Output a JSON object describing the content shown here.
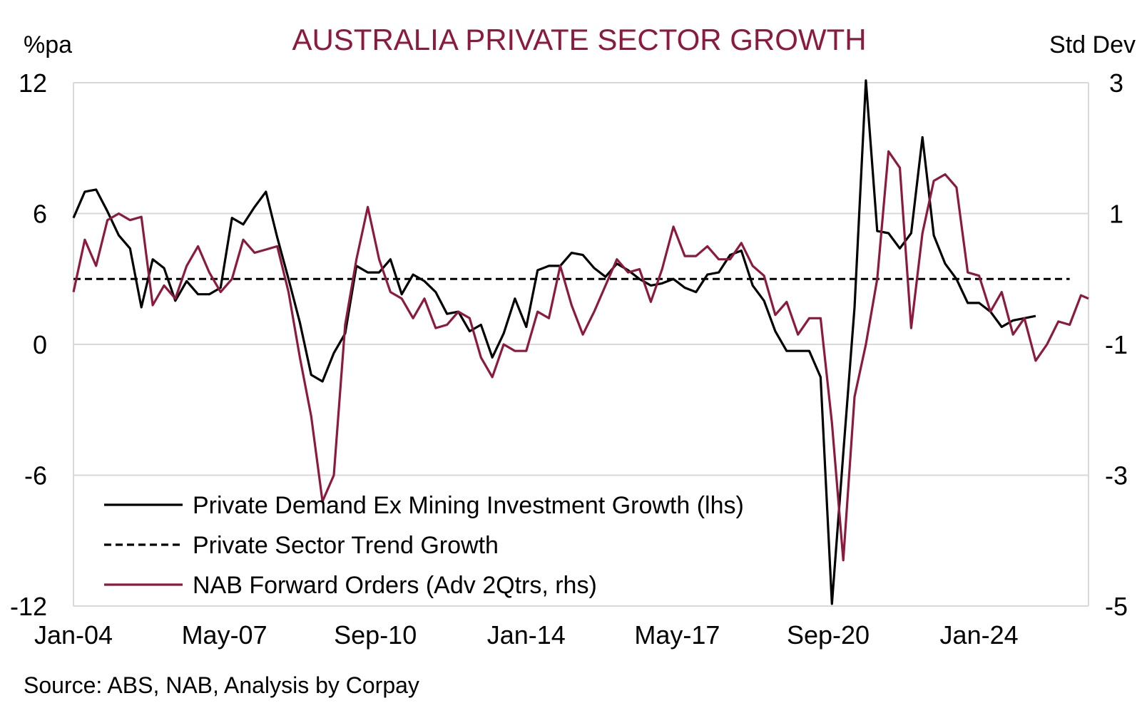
{
  "chart_data": {
    "type": "line",
    "title": "AUSTRALIA PRIVATE SECTOR GROWTH",
    "ylabel_left": "%pa",
    "ylabel_right": "Std Dev",
    "source": "Source: ABS, NAB, Analysis by Corpay",
    "x_axis": {
      "start": "2004-01",
      "end": "2026-06",
      "ticks": [
        "2004-01",
        "2007-05",
        "2010-09",
        "2014-01",
        "2017-05",
        "2020-09",
        "2024-01"
      ],
      "tick_labels": [
        "Jan-04",
        "May-07",
        "Sep-10",
        "Jan-14",
        "May-17",
        "Sep-20",
        "Jan-24"
      ]
    },
    "y_left": {
      "range": [
        -12,
        12
      ],
      "ticks": [
        -12,
        -6,
        0,
        6,
        12
      ],
      "tick_labels": [
        "-12",
        "-6",
        "0",
        "6",
        "12"
      ]
    },
    "y_right": {
      "range": [
        -5,
        3
      ],
      "ticks": [
        -5,
        -3,
        -1,
        1,
        3
      ],
      "tick_labels": [
        "-5",
        "-3",
        "-1",
        "1",
        "3"
      ]
    },
    "grid": "horizontal",
    "legend_position": "bottom-left",
    "series": [
      {
        "name": "Private Demand Ex Mining Investment Growth (lhs)",
        "axis": "left",
        "color": "#000000",
        "style": "solid",
        "points": [
          [
            "2004-01",
            5.8
          ],
          [
            "2004-04",
            7.0
          ],
          [
            "2004-07",
            7.1
          ],
          [
            "2004-10",
            6.1
          ],
          [
            "2005-01",
            5.0
          ],
          [
            "2005-04",
            4.4
          ],
          [
            "2005-07",
            1.7
          ],
          [
            "2005-10",
            3.9
          ],
          [
            "2006-01",
            3.5
          ],
          [
            "2006-04",
            2.0
          ],
          [
            "2006-07",
            2.9
          ],
          [
            "2006-10",
            2.3
          ],
          [
            "2007-01",
            2.3
          ],
          [
            "2007-04",
            2.6
          ],
          [
            "2007-07",
            5.8
          ],
          [
            "2007-10",
            5.5
          ],
          [
            "2008-01",
            6.3
          ],
          [
            "2008-04",
            7.0
          ],
          [
            "2008-07",
            4.9
          ],
          [
            "2008-10",
            3.0
          ],
          [
            "2009-01",
            1.0
          ],
          [
            "2009-04",
            -1.4
          ],
          [
            "2009-07",
            -1.7
          ],
          [
            "2009-10",
            -0.4
          ],
          [
            "2010-01",
            0.5
          ],
          [
            "2010-04",
            3.6
          ],
          [
            "2010-07",
            3.3
          ],
          [
            "2010-10",
            3.3
          ],
          [
            "2011-01",
            3.9
          ],
          [
            "2011-04",
            2.3
          ],
          [
            "2011-07",
            3.2
          ],
          [
            "2011-10",
            2.9
          ],
          [
            "2012-01",
            2.4
          ],
          [
            "2012-04",
            1.4
          ],
          [
            "2012-07",
            1.5
          ],
          [
            "2012-10",
            0.6
          ],
          [
            "2013-01",
            0.9
          ],
          [
            "2013-04",
            -0.6
          ],
          [
            "2013-07",
            0.5
          ],
          [
            "2013-10",
            2.1
          ],
          [
            "2014-01",
            0.8
          ],
          [
            "2014-04",
            3.4
          ],
          [
            "2014-07",
            3.6
          ],
          [
            "2014-10",
            3.6
          ],
          [
            "2015-01",
            4.2
          ],
          [
            "2015-04",
            4.1
          ],
          [
            "2015-07",
            3.5
          ],
          [
            "2015-10",
            3.1
          ],
          [
            "2016-01",
            3.7
          ],
          [
            "2016-04",
            3.4
          ],
          [
            "2016-07",
            3.0
          ],
          [
            "2016-10",
            2.7
          ],
          [
            "2017-01",
            2.8
          ],
          [
            "2017-04",
            3.0
          ],
          [
            "2017-07",
            2.6
          ],
          [
            "2017-10",
            2.4
          ],
          [
            "2018-01",
            3.2
          ],
          [
            "2018-04",
            3.3
          ],
          [
            "2018-07",
            4.1
          ],
          [
            "2018-10",
            4.3
          ],
          [
            "2019-01",
            2.7
          ],
          [
            "2019-04",
            2.0
          ],
          [
            "2019-07",
            0.6
          ],
          [
            "2019-10",
            -0.3
          ],
          [
            "2020-01",
            -0.3
          ],
          [
            "2020-04",
            -0.3
          ],
          [
            "2020-07",
            -1.5
          ],
          [
            "2020-10",
            -11.9
          ],
          [
            "2021-01",
            -5.0
          ],
          [
            "2021-04",
            1.7
          ],
          [
            "2021-07",
            12.1
          ],
          [
            "2021-10",
            5.2
          ],
          [
            "2022-01",
            5.1
          ],
          [
            "2022-04",
            4.4
          ],
          [
            "2022-07",
            5.1
          ],
          [
            "2022-10",
            9.5
          ],
          [
            "2023-01",
            5.0
          ],
          [
            "2023-04",
            3.7
          ],
          [
            "2023-07",
            3.0
          ],
          [
            "2023-10",
            1.9
          ],
          [
            "2024-01",
            1.9
          ],
          [
            "2024-04",
            1.5
          ],
          [
            "2024-07",
            0.8
          ],
          [
            "2024-10",
            1.1
          ],
          [
            "2025-01",
            1.2
          ],
          [
            "2025-04",
            1.3
          ]
        ]
      },
      {
        "name": "Private Sector Trend Growth",
        "axis": "left",
        "color": "#000000",
        "style": "dashed",
        "points": [
          [
            "2004-01",
            3.0
          ],
          [
            "2026-01",
            3.0
          ]
        ]
      },
      {
        "name": "NAB Forward Orders (Adv 2Qtrs, rhs)",
        "axis": "right",
        "color": "#8b1a3d",
        "style": "solid",
        "points": [
          [
            "2004-01",
            -0.2
          ],
          [
            "2004-04",
            0.6
          ],
          [
            "2004-07",
            0.2
          ],
          [
            "2004-10",
            0.9
          ],
          [
            "2005-01",
            1.0
          ],
          [
            "2005-04",
            0.9
          ],
          [
            "2005-07",
            0.95
          ],
          [
            "2005-10",
            -0.4
          ],
          [
            "2006-01",
            -0.1
          ],
          [
            "2006-04",
            -0.3
          ],
          [
            "2006-07",
            0.2
          ],
          [
            "2006-10",
            0.5
          ],
          [
            "2007-01",
            0.1
          ],
          [
            "2007-04",
            -0.2
          ],
          [
            "2007-07",
            0.0
          ],
          [
            "2007-10",
            0.6
          ],
          [
            "2008-01",
            0.4
          ],
          [
            "2008-04",
            0.45
          ],
          [
            "2008-07",
            0.5
          ],
          [
            "2008-10",
            -0.2
          ],
          [
            "2009-01",
            -1.2
          ],
          [
            "2009-04",
            -2.1
          ],
          [
            "2009-07",
            -3.4
          ],
          [
            "2009-10",
            -3.0
          ],
          [
            "2010-01",
            -0.7
          ],
          [
            "2010-04",
            0.3
          ],
          [
            "2010-07",
            1.1
          ],
          [
            "2010-10",
            0.3
          ],
          [
            "2011-01",
            -0.2
          ],
          [
            "2011-04",
            -0.3
          ],
          [
            "2011-07",
            -0.6
          ],
          [
            "2011-10",
            -0.3
          ],
          [
            "2012-01",
            -0.75
          ],
          [
            "2012-04",
            -0.7
          ],
          [
            "2012-07",
            -0.5
          ],
          [
            "2012-10",
            -0.6
          ],
          [
            "2013-01",
            -1.2
          ],
          [
            "2013-04",
            -1.5
          ],
          [
            "2013-07",
            -1.0
          ],
          [
            "2013-10",
            -1.1
          ],
          [
            "2014-01",
            -1.1
          ],
          [
            "2014-04",
            -0.5
          ],
          [
            "2014-07",
            -0.6
          ],
          [
            "2014-10",
            0.2
          ],
          [
            "2015-01",
            -0.4
          ],
          [
            "2015-04",
            -0.85
          ],
          [
            "2015-07",
            -0.5
          ],
          [
            "2015-10",
            -0.1
          ],
          [
            "2016-01",
            0.3
          ],
          [
            "2016-04",
            0.1
          ],
          [
            "2016-07",
            0.15
          ],
          [
            "2016-10",
            -0.35
          ],
          [
            "2017-01",
            0.15
          ],
          [
            "2017-04",
            0.8
          ],
          [
            "2017-07",
            0.35
          ],
          [
            "2017-10",
            0.35
          ],
          [
            "2018-01",
            0.5
          ],
          [
            "2018-04",
            0.3
          ],
          [
            "2018-07",
            0.3
          ],
          [
            "2018-10",
            0.55
          ],
          [
            "2019-01",
            0.2
          ],
          [
            "2019-04",
            0.05
          ],
          [
            "2019-07",
            -0.55
          ],
          [
            "2019-10",
            -0.35
          ],
          [
            "2020-01",
            -0.85
          ],
          [
            "2020-04",
            -0.6
          ],
          [
            "2020-07",
            -0.6
          ],
          [
            "2020-10",
            -2.2
          ],
          [
            "2021-01",
            -4.3
          ],
          [
            "2021-04",
            -1.8
          ],
          [
            "2021-07",
            -1.0
          ],
          [
            "2021-10",
            0.0
          ],
          [
            "2022-01",
            1.95
          ],
          [
            "2022-04",
            1.7
          ],
          [
            "2022-07",
            -0.75
          ],
          [
            "2022-10",
            0.7
          ],
          [
            "2023-01",
            1.5
          ],
          [
            "2023-04",
            1.6
          ],
          [
            "2023-07",
            1.4
          ],
          [
            "2023-10",
            0.1
          ],
          [
            "2024-01",
            0.05
          ],
          [
            "2024-04",
            -0.5
          ],
          [
            "2024-07",
            -0.2
          ],
          [
            "2024-10",
            -0.85
          ],
          [
            "2025-01",
            -0.6
          ],
          [
            "2025-04",
            -1.25
          ],
          [
            "2025-07",
            -1.0
          ],
          [
            "2025-10",
            -0.65
          ],
          [
            "2026-01",
            -0.7
          ],
          [
            "2026-04",
            -0.25
          ],
          [
            "2026-06",
            -0.3
          ]
        ]
      }
    ]
  }
}
